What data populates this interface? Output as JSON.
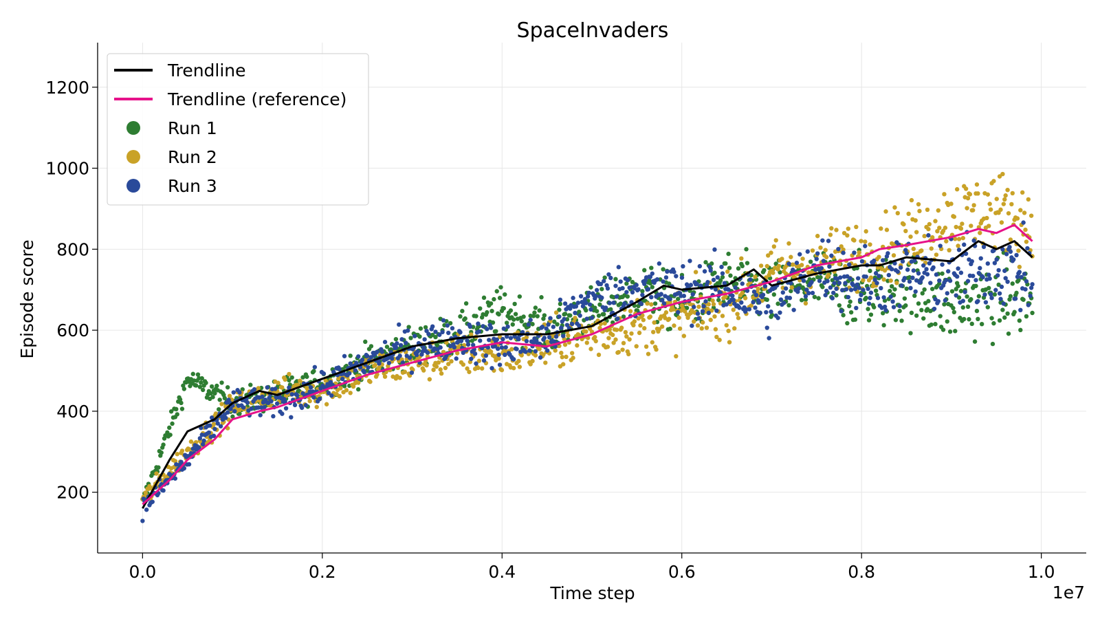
{
  "chart_data": {
    "type": "scatter",
    "title": "SpaceInvaders",
    "xlabel": "Time step",
    "ylabel": "Episode score",
    "x_offset_label": "1e7",
    "xlim": [
      -0.05,
      1.05
    ],
    "ylim": [
      50,
      1310
    ],
    "x_ticks": [
      0.0,
      0.2,
      0.4,
      0.6,
      0.8,
      1.0
    ],
    "x_tick_labels": [
      "0.0",
      "0.2",
      "0.4",
      "0.6",
      "0.8",
      "1.0"
    ],
    "y_ticks": [
      200,
      400,
      600,
      800,
      1000,
      1200
    ],
    "y_tick_labels": [
      "200",
      "400",
      "600",
      "800",
      "1000",
      "1200"
    ],
    "grid": true,
    "legend_position": "top-left",
    "series": [
      {
        "name": "Run 1",
        "kind": "scatter",
        "color": "#2e7d32",
        "x": [
          0.0,
          0.05,
          0.1,
          0.15,
          0.2,
          0.25,
          0.3,
          0.35,
          0.4,
          0.45,
          0.5,
          0.55,
          0.6,
          0.65,
          0.7,
          0.75,
          0.8,
          0.85,
          0.9,
          0.95,
          1.0
        ],
        "y": [
          170,
          480,
          420,
          440,
          470,
          520,
          560,
          590,
          650,
          600,
          640,
          700,
          660,
          720,
          690,
          720,
          690,
          700,
          660,
          680,
          680
        ]
      },
      {
        "name": "Run 2",
        "kind": "scatter",
        "color": "#c9a227",
        "x": [
          0.0,
          0.05,
          0.1,
          0.15,
          0.2,
          0.25,
          0.3,
          0.35,
          0.4,
          0.45,
          0.5,
          0.55,
          0.6,
          0.65,
          0.7,
          0.75,
          0.8,
          0.85,
          0.9,
          0.95,
          1.0
        ],
        "y": [
          180,
          300,
          410,
          450,
          450,
          500,
          520,
          540,
          540,
          560,
          590,
          610,
          630,
          660,
          740,
          760,
          790,
          820,
          880,
          900,
          850
        ]
      },
      {
        "name": "Run 3",
        "kind": "scatter",
        "color": "#2a4a9a",
        "x": [
          0.0,
          0.05,
          0.1,
          0.15,
          0.2,
          0.25,
          0.3,
          0.35,
          0.4,
          0.45,
          0.5,
          0.55,
          0.6,
          0.65,
          0.7,
          0.75,
          0.8,
          0.85,
          0.9,
          0.95,
          1.0
        ],
        "y": [
          160,
          280,
          420,
          420,
          460,
          520,
          560,
          580,
          560,
          580,
          680,
          700,
          700,
          700,
          660,
          760,
          720,
          740,
          730,
          760,
          720
        ]
      },
      {
        "name": "Trendline",
        "kind": "line",
        "color": "#000000",
        "x": [
          0.0,
          0.03,
          0.05,
          0.08,
          0.1,
          0.13,
          0.15,
          0.2,
          0.25,
          0.3,
          0.35,
          0.4,
          0.45,
          0.5,
          0.55,
          0.58,
          0.6,
          0.65,
          0.68,
          0.7,
          0.75,
          0.8,
          0.82,
          0.85,
          0.9,
          0.93,
          0.95,
          0.97,
          0.99
        ],
        "y": [
          160,
          280,
          350,
          380,
          420,
          450,
          440,
          480,
          520,
          560,
          580,
          590,
          590,
          610,
          670,
          710,
          700,
          710,
          750,
          710,
          740,
          760,
          760,
          780,
          770,
          820,
          800,
          820,
          780
        ]
      },
      {
        "name": "Trendline (reference)",
        "kind": "line",
        "color": "#e6128a",
        "x": [
          0.0,
          0.03,
          0.05,
          0.08,
          0.1,
          0.13,
          0.15,
          0.2,
          0.25,
          0.3,
          0.35,
          0.4,
          0.45,
          0.5,
          0.55,
          0.6,
          0.65,
          0.7,
          0.75,
          0.8,
          0.82,
          0.85,
          0.9,
          0.93,
          0.95,
          0.97,
          0.99
        ],
        "y": [
          170,
          230,
          280,
          330,
          380,
          400,
          410,
          450,
          490,
          520,
          550,
          570,
          560,
          590,
          640,
          670,
          690,
          720,
          760,
          780,
          800,
          810,
          830,
          850,
          840,
          860,
          820
        ]
      }
    ],
    "legend": [
      {
        "label": "Trendline",
        "kind": "line",
        "color": "#000000"
      },
      {
        "label": "Trendline (reference)",
        "kind": "line",
        "color": "#e6128a"
      },
      {
        "label": "Run 1",
        "kind": "dot",
        "color": "#2e7d32"
      },
      {
        "label": "Run 2",
        "kind": "dot",
        "color": "#c9a227"
      },
      {
        "label": "Run 3",
        "kind": "dot",
        "color": "#2a4a9a"
      }
    ]
  }
}
